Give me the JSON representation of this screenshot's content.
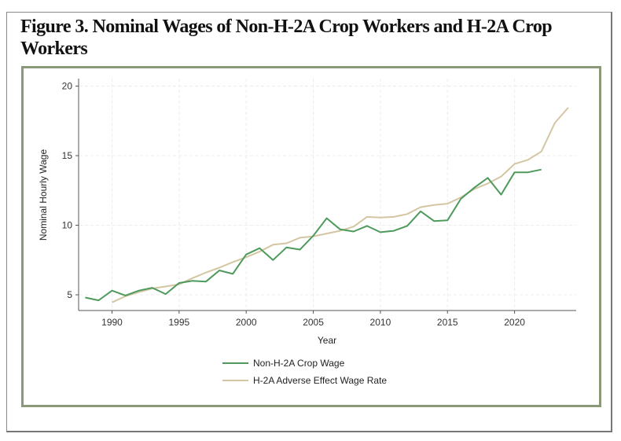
{
  "title": "Figure 3. Nominal Wages of Non-H-2A Crop Workers and H-2A Crop Workers",
  "chart_data": {
    "type": "line",
    "xlabel": "Year",
    "ylabel": "Nominal Hourly Wage",
    "xlim": [
      1988,
      2024
    ],
    "ylim": [
      4.2,
      20.5
    ],
    "xticks": [
      1990,
      1995,
      2000,
      2005,
      2010,
      2015,
      2020
    ],
    "yticks": [
      5,
      10,
      15,
      20
    ],
    "grid": true,
    "legend_placement": "bottom",
    "series": [
      {
        "name": "Non-H-2A Crop Wage",
        "color": "#4e9a5c",
        "x": [
          1988,
          1989,
          1990,
          1991,
          1992,
          1993,
          1994,
          1995,
          1996,
          1997,
          1998,
          1999,
          2000,
          2001,
          2002,
          2003,
          2004,
          2005,
          2006,
          2007,
          2008,
          2009,
          2010,
          2011,
          2012,
          2013,
          2014,
          2015,
          2016,
          2017,
          2018,
          2019,
          2020,
          2021,
          2022
        ],
        "y": [
          4.8,
          4.6,
          5.3,
          4.95,
          5.3,
          5.5,
          5.05,
          5.85,
          6.0,
          5.95,
          6.75,
          6.5,
          7.9,
          8.35,
          7.5,
          8.4,
          8.25,
          9.25,
          10.5,
          9.7,
          9.55,
          9.95,
          9.5,
          9.6,
          9.95,
          11.0,
          10.3,
          10.35,
          11.9,
          12.7,
          13.4,
          12.2,
          13.8,
          13.8,
          14.0
        ]
      },
      {
        "name": "H-2A Adverse Effect Wage Rate",
        "color": "#d4c6a2",
        "x": [
          1990,
          1991,
          1992,
          1993,
          1994,
          1995,
          1996,
          1997,
          1998,
          1999,
          2000,
          2001,
          2002,
          2003,
          2004,
          2005,
          2006,
          2007,
          2008,
          2009,
          2010,
          2011,
          2012,
          2013,
          2014,
          2015,
          2016,
          2017,
          2018,
          2019,
          2020,
          2021,
          2022,
          2023,
          2024
        ],
        "y": [
          4.45,
          4.9,
          5.2,
          5.45,
          5.6,
          5.75,
          6.2,
          6.6,
          6.95,
          7.35,
          7.7,
          8.1,
          8.6,
          8.7,
          9.1,
          9.2,
          9.4,
          9.6,
          9.9,
          10.6,
          10.55,
          10.6,
          10.8,
          11.3,
          11.45,
          11.55,
          12.0,
          12.6,
          13.0,
          13.5,
          14.4,
          14.7,
          15.3,
          17.35,
          18.45
        ]
      }
    ]
  }
}
